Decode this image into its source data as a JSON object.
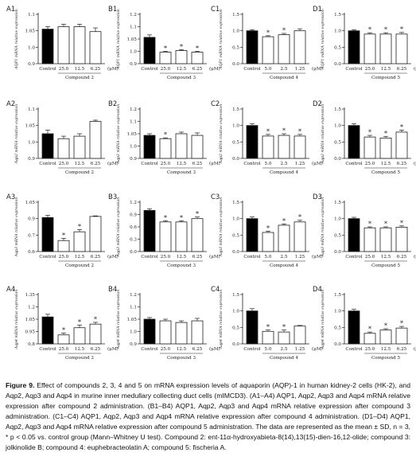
{
  "figure": {
    "caption_label": "Figure 9.",
    "caption_text": "Effect of compounds 2, 3, 4 and 5 on mRNA expression levels of aquaporin (AQP)-1 in human kidney-2 cells (HK-2), and Aqp2, Aqp3 and Aqp4 in murine inner medullary collecting duct cells (mIMCD3). (A1–A4) AQP1, Aqp2, Aqp3 and Aqp4 mRNA relative expression after compound 2 administration. (B1–B4) AQP1, Aqp2, Aqp3 and Aqp4 mRNA relative expression after compound 3 administration. (C1–C4) AQP1, Aqp2, Aqp3 and Aqp4 mRNA relative expression after compound 4 administration. (D1–D4) AQP1, Aqp2, Aqp3 and Aqp4 mRNA relative expression after compound 5 administration. The data are represented as the mean ± SD, n = 3, * p < 0.05 vs. control group (Mann–Whitney U test). Compound 2: ent-11α-hydroxyabieta-8(14),13(15)-dien-16,12-olide; compound 3: jolkinolide B; compound 4: euphebracteolatin A; compound 5: fischeria A."
  },
  "colors": {
    "control_bar": "#000000",
    "treated_bar": "#ffffff",
    "axis": "#222222"
  },
  "chart_data": [
    {
      "panel": "A1",
      "type": "bar",
      "ylabel": "AQP1 mRNA relative expression",
      "ylim": [
        0.9,
        1.1
      ],
      "yticks": [
        "0.9",
        "1.0",
        "1.05",
        "1.1"
      ],
      "categories": [
        "Control",
        "25.0",
        "12.5",
        "6.25"
      ],
      "unit": "(μM)",
      "group_label": "Compound 2",
      "values": [
        1.04,
        1.05,
        1.05,
        1.03
      ],
      "errors": [
        0.01,
        0.01,
        0.01,
        0.015
      ],
      "significant": [
        false,
        false,
        false,
        false
      ]
    },
    {
      "panel": "B1",
      "type": "bar",
      "ylabel": "AQP1 mRNA relative expression",
      "ylim": [
        0.9,
        1.2
      ],
      "yticks": [
        "0.9",
        "1.0",
        "1.05",
        "1.1",
        "1.2"
      ],
      "categories": [
        "Control",
        "25.0",
        "12.5",
        "6.25"
      ],
      "unit": "(μM)",
      "group_label": "Compound 3",
      "values": [
        1.06,
        0.97,
        0.98,
        0.97
      ],
      "errors": [
        0.015,
        0.005,
        0.005,
        0.005
      ],
      "significant": [
        false,
        true,
        true,
        true
      ]
    },
    {
      "panel": "C1",
      "type": "bar",
      "ylabel": "AQP1 mRNA relative expression",
      "ylim": [
        0.0,
        1.5
      ],
      "yticks": [
        "0.0",
        "0.5",
        "1.0",
        "1.5"
      ],
      "categories": [
        "Control",
        "5.0",
        "2.5",
        "1.25"
      ],
      "unit": "(μM)",
      "group_label": "Compound 4",
      "values": [
        1.0,
        0.82,
        0.88,
        1.0
      ],
      "errors": [
        0.03,
        0.03,
        0.04,
        0.06
      ],
      "significant": [
        false,
        true,
        true,
        false
      ]
    },
    {
      "panel": "D1",
      "type": "bar",
      "ylabel": "AQP1 mRNA relative expression",
      "ylim": [
        0.0,
        1.5
      ],
      "yticks": [
        "0.0",
        "0.5",
        "1.0",
        "1.5"
      ],
      "categories": [
        "Control",
        "25.0",
        "12.5",
        "6.25"
      ],
      "unit": "(μM)",
      "group_label": "Compound 5",
      "values": [
        1.0,
        0.9,
        0.9,
        0.9
      ],
      "errors": [
        0.03,
        0.04,
        0.04,
        0.05
      ],
      "significant": [
        false,
        true,
        true,
        true
      ]
    },
    {
      "panel": "A2",
      "type": "bar",
      "ylabel": "Aqp2 mRNA relative expression",
      "ylim": [
        0.9,
        1.1
      ],
      "yticks": [
        "0.9",
        "1.0",
        "1.05",
        "1.1"
      ],
      "categories": [
        "Control",
        "25.0",
        "12.5",
        "6.25"
      ],
      "unit": "(μM)",
      "group_label": "Compound 2",
      "values": [
        1.0,
        0.98,
        0.99,
        1.05
      ],
      "errors": [
        0.015,
        0.01,
        0.01,
        0.005
      ],
      "significant": [
        false,
        false,
        false,
        false
      ]
    },
    {
      "panel": "B2",
      "type": "bar",
      "ylabel": "Aqp2 mRNA relative expression",
      "ylim": [
        0.9,
        1.2
      ],
      "yticks": [
        "0.9",
        "1.0",
        "1.05",
        "1.1",
        "1.2"
      ],
      "categories": [
        "Control",
        "25.0",
        "12.5",
        "6.25"
      ],
      "unit": "(μM)",
      "group_label": "Compound 3",
      "values": [
        1.04,
        1.02,
        1.05,
        1.04
      ],
      "errors": [
        0.01,
        0.005,
        0.01,
        0.015
      ],
      "significant": [
        false,
        true,
        false,
        false
      ]
    },
    {
      "panel": "C2",
      "type": "bar",
      "ylabel": "Aqp2 mRNA relative expression",
      "ylim": [
        0.0,
        1.5
      ],
      "yticks": [
        "0.0",
        "0.5",
        "1.0",
        "1.5"
      ],
      "categories": [
        "Control",
        "5.0",
        "2.5",
        "1.25"
      ],
      "unit": "(μM)",
      "group_label": "Compound 4",
      "values": [
        1.0,
        0.68,
        0.7,
        0.68
      ],
      "errors": [
        0.05,
        0.05,
        0.05,
        0.05
      ],
      "significant": [
        false,
        true,
        true,
        true
      ]
    },
    {
      "panel": "D2",
      "type": "bar",
      "ylabel": "Aqp2 mRNA relative expression",
      "ylim": [
        0.0,
        1.5
      ],
      "yticks": [
        "0.0",
        "0.5",
        "1.0",
        "1.5"
      ],
      "categories": [
        "Control",
        "25.0",
        "12.5",
        "6.25"
      ],
      "unit": "(μM)",
      "group_label": "Compound 5",
      "values": [
        1.0,
        0.65,
        0.62,
        0.8
      ],
      "errors": [
        0.05,
        0.05,
        0.05,
        0.06
      ],
      "significant": [
        false,
        true,
        true,
        true
      ]
    },
    {
      "panel": "A3",
      "type": "bar",
      "ylabel": "Aqp3 mRNA relative expression",
      "ylim": [
        0.6,
        1.05
      ],
      "yticks": [
        "0.6",
        "0.7",
        "0.9",
        "1.05"
      ],
      "categories": [
        "Control",
        "25.0",
        "12.5",
        "6.25"
      ],
      "unit": "(μM)",
      "group_label": "Compound 2",
      "values": [
        0.91,
        0.7,
        0.78,
        0.92
      ],
      "errors": [
        0.02,
        0.02,
        0.02,
        0.005
      ],
      "significant": [
        false,
        true,
        true,
        false
      ]
    },
    {
      "panel": "B3",
      "type": "bar",
      "ylabel": "Aqp3 mRNA relative expression",
      "ylim": [
        0.0,
        1.2
      ],
      "yticks": [
        "0.0",
        "0.3",
        "0.6",
        "0.9",
        "1.2"
      ],
      "categories": [
        "Control",
        "25.0",
        "12.5",
        "6.25"
      ],
      "unit": "(μM)",
      "group_label": "Compound 3",
      "values": [
        1.0,
        0.72,
        0.72,
        0.8
      ],
      "errors": [
        0.04,
        0.03,
        0.03,
        0.04
      ],
      "significant": [
        false,
        true,
        true,
        true
      ]
    },
    {
      "panel": "C3",
      "type": "bar",
      "ylabel": "Aqp3 mRNA relative expression",
      "ylim": [
        0.0,
        1.5
      ],
      "yticks": [
        "0.0",
        "0.5",
        "1.0",
        "1.5"
      ],
      "categories": [
        "Control",
        "5.0",
        "2.5",
        "1.25"
      ],
      "unit": "(μM)",
      "group_label": "Compound 4",
      "values": [
        1.0,
        0.58,
        0.8,
        0.9
      ],
      "errors": [
        0.05,
        0.04,
        0.04,
        0.05
      ],
      "significant": [
        false,
        true,
        true,
        true
      ]
    },
    {
      "panel": "D3",
      "type": "bar",
      "ylabel": "Aqp3 mRNA relative expression",
      "ylim": [
        0.0,
        1.5
      ],
      "yticks": [
        "0.0",
        "0.5",
        "1.0",
        "1.5"
      ],
      "categories": [
        "Control",
        "25.0",
        "12.5",
        "6.25"
      ],
      "unit": "(μM)",
      "group_label": "Compound 5",
      "values": [
        1.0,
        0.72,
        0.72,
        0.74
      ],
      "errors": [
        0.04,
        0.03,
        0.03,
        0.04
      ],
      "significant": [
        false,
        true,
        true,
        true
      ]
    },
    {
      "panel": "A4",
      "type": "bar",
      "ylabel": "Aqp4 mRNA relative expression",
      "ylim": [
        0.8,
        1.35
      ],
      "yticks": [
        "0.8",
        "0.95",
        "1.05",
        "1.2",
        "1.35"
      ],
      "categories": [
        "Control",
        "25.0",
        "12.5",
        "6.25"
      ],
      "unit": "(μM)",
      "group_label": "Compound 2",
      "values": [
        1.1,
        0.9,
        0.98,
        1.02
      ],
      "errors": [
        0.03,
        0.02,
        0.03,
        0.02
      ],
      "significant": [
        false,
        true,
        true,
        true
      ]
    },
    {
      "panel": "B4",
      "type": "bar",
      "ylabel": "Aqp4 mRNA relative expression",
      "ylim": [
        0.9,
        1.2
      ],
      "yticks": [
        "0.9",
        "1.0",
        "1.05",
        "1.1",
        "1.2"
      ],
      "categories": [
        "Control",
        "25.0",
        "12.5",
        "6.25"
      ],
      "unit": "(μM)",
      "group_label": "Compound 3",
      "values": [
        1.05,
        1.04,
        1.03,
        1.04
      ],
      "errors": [
        0.01,
        0.01,
        0.01,
        0.015
      ],
      "significant": [
        false,
        false,
        false,
        false
      ]
    },
    {
      "panel": "C4",
      "type": "bar",
      "ylabel": "Aqp4 mRNA relative expression",
      "ylim": [
        0.0,
        1.5
      ],
      "yticks": [
        "0.0",
        "0.5",
        "1.0",
        "1.5"
      ],
      "categories": [
        "Control",
        "5.0",
        "2.5",
        "1.25"
      ],
      "unit": "(μM)",
      "group_label": "Compound 4",
      "values": [
        1.0,
        0.38,
        0.36,
        0.54
      ],
      "errors": [
        0.07,
        0.04,
        0.06,
        0.02
      ],
      "significant": [
        false,
        true,
        true,
        false
      ]
    },
    {
      "panel": "D4",
      "type": "bar",
      "ylabel": "Aqp4 mRNA relative expression",
      "ylim": [
        0.0,
        1.5
      ],
      "yticks": [
        "0.0",
        "0.5",
        "1.0",
        "1.5"
      ],
      "categories": [
        "Control",
        "25.0",
        "12.5",
        "6.25"
      ],
      "unit": "(μM)",
      "group_label": "Compound 5",
      "values": [
        1.0,
        0.32,
        0.42,
        0.48
      ],
      "errors": [
        0.05,
        0.04,
        0.04,
        0.05
      ],
      "significant": [
        false,
        true,
        true,
        true
      ]
    }
  ]
}
